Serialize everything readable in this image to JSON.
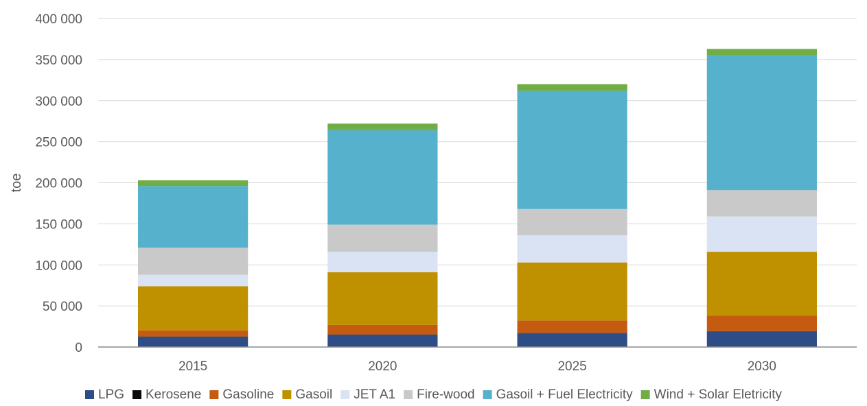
{
  "chart_data": {
    "type": "bar",
    "stacked": true,
    "categories": [
      "2015",
      "2020",
      "2025",
      "2030"
    ],
    "series": [
      {
        "name": "LPG",
        "color": "#2e4d86",
        "values": [
          12500,
          15000,
          17000,
          19000
        ]
      },
      {
        "name": "Kerosene",
        "color": "#0a0a0a",
        "values": [
          300,
          300,
          300,
          300
        ]
      },
      {
        "name": "Gasoline",
        "color": "#c55a11",
        "values": [
          7500,
          11500,
          15000,
          19000
        ]
      },
      {
        "name": "Gasoil",
        "color": "#bf9000",
        "values": [
          53700,
          64200,
          70700,
          77700
        ]
      },
      {
        "name": "JET A1",
        "color": "#dae3f3",
        "values": [
          14000,
          25000,
          33000,
          43000
        ]
      },
      {
        "name": "Fire-wood",
        "color": "#c9c9c9",
        "values": [
          33000,
          33000,
          32000,
          32000
        ]
      },
      {
        "name": "Gasoil + Fuel Electricity",
        "color": "#56b1cc",
        "values": [
          75000,
          115000,
          144000,
          164000
        ]
      },
      {
        "name": "Wind + Solar Eletricity",
        "color": "#70ad47",
        "values": [
          7000,
          8000,
          8000,
          8000
        ]
      }
    ],
    "ylabel": "toe",
    "ylim": [
      0,
      400000
    ],
    "yticks": [
      0,
      50000,
      100000,
      150000,
      200000,
      250000,
      300000,
      350000,
      400000
    ],
    "ytick_labels": [
      "0",
      "50 000",
      "100 000",
      "150 000",
      "200 000",
      "250 000",
      "300 000",
      "350 000",
      "400 000"
    ],
    "grid": true,
    "legend_position": "bottom",
    "colors": {
      "grid": "#d9d9d9",
      "axis": "#8c8c8c",
      "text": "#595959"
    }
  }
}
